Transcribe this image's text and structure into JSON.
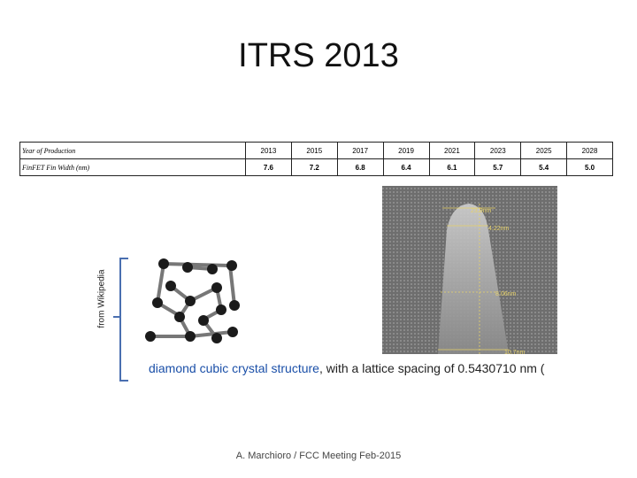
{
  "header": {
    "title": "ITRS 2013"
  },
  "table": {
    "rows": [
      [
        "Year of Production",
        "2013",
        "2015",
        "2017",
        "2019",
        "2021",
        "2023",
        "2025",
        "2028"
      ],
      [
        "FinFET Fin Width (nm)",
        "7.6",
        "7.2",
        "6.8",
        "6.4",
        "6.1",
        "5.7",
        "5.4",
        "5.0"
      ]
    ]
  },
  "side_note": "from Wikipedia",
  "micrograph": {
    "labels": [
      "23.9nm",
      "4.22nm",
      "8.06nm",
      "10.7nm"
    ]
  },
  "caption": {
    "parts": [
      "diamond cubic",
      " crystal structure",
      ", with a lattice spacing of 0.5430710 nm ("
    ]
  },
  "footer": "A. Marchioro / FCC Meeting Feb-2015"
}
